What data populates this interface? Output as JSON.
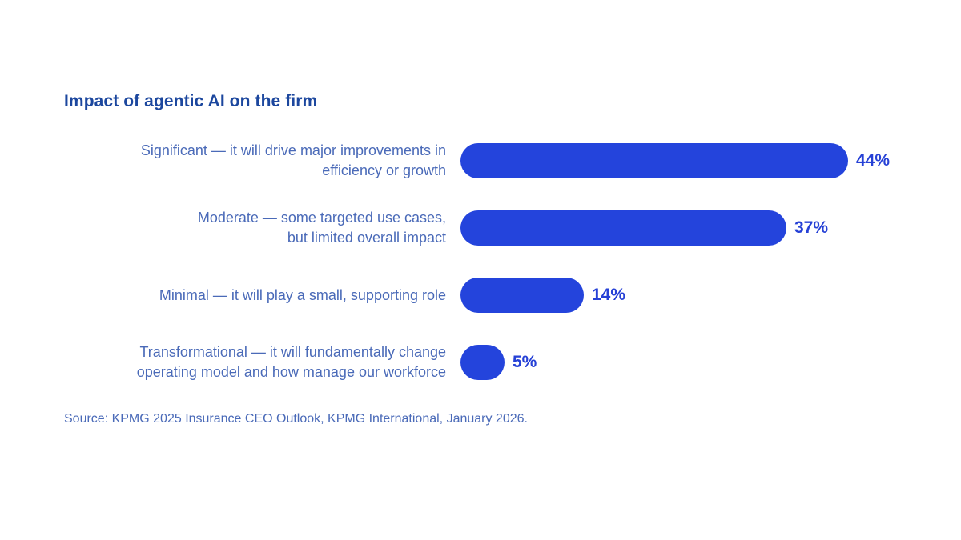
{
  "chart_data": {
    "type": "bar",
    "orientation": "horizontal",
    "title": "Impact of agentic AI on the firm",
    "categories": [
      "Significant — it will drive major improvements in efficiency or growth",
      "Moderate — some targeted use cases, but limited overall impact",
      "Minimal — it will play a small, supporting role",
      "Transformational — it will fundamentally change operating model and how manage our workforce"
    ],
    "category_lines": [
      [
        "Significant — it will drive major improvements in",
        "efficiency or growth"
      ],
      [
        "Moderate — some targeted use cases,",
        "but limited overall impact"
      ],
      [
        "Minimal — it will play a small, supporting role"
      ],
      [
        "Transformational — it will fundamentally change",
        "operating model and how manage our workforce"
      ]
    ],
    "values": [
      44,
      37,
      14,
      5
    ],
    "unit": "%",
    "value_labels": [
      "44%",
      "37%",
      "14%",
      "5%"
    ],
    "xlim": [
      0,
      53
    ],
    "grid": false,
    "legend": "none",
    "bar_color": "#2444dc",
    "value_label_color": "#2641d6",
    "category_label_color": "#4a6ab8",
    "title_color": "#1c479e"
  },
  "source": {
    "text": "Source: KPMG 2025 Insurance CEO Outlook, KPMG International, January 2026."
  }
}
